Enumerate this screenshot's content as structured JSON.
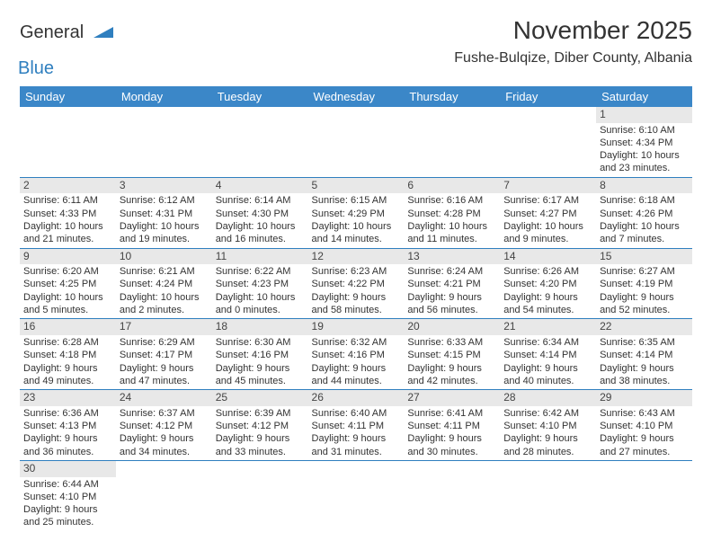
{
  "logo": {
    "text1": "General",
    "text2": "Blue"
  },
  "title": "November 2025",
  "location": "Fushe-Bulqize, Diber County, Albania",
  "header_bg": "#3b87c8",
  "header_fg": "#ffffff",
  "daynum_bg": "#e8e8e8",
  "border_color": "#2f7fbf",
  "days_of_week": [
    "Sunday",
    "Monday",
    "Tuesday",
    "Wednesday",
    "Thursday",
    "Friday",
    "Saturday"
  ],
  "weeks": [
    [
      null,
      null,
      null,
      null,
      null,
      null,
      {
        "n": "1",
        "sunrise": "Sunrise: 6:10 AM",
        "sunset": "Sunset: 4:34 PM",
        "daylight1": "Daylight: 10 hours",
        "daylight2": "and 23 minutes."
      }
    ],
    [
      {
        "n": "2",
        "sunrise": "Sunrise: 6:11 AM",
        "sunset": "Sunset: 4:33 PM",
        "daylight1": "Daylight: 10 hours",
        "daylight2": "and 21 minutes."
      },
      {
        "n": "3",
        "sunrise": "Sunrise: 6:12 AM",
        "sunset": "Sunset: 4:31 PM",
        "daylight1": "Daylight: 10 hours",
        "daylight2": "and 19 minutes."
      },
      {
        "n": "4",
        "sunrise": "Sunrise: 6:14 AM",
        "sunset": "Sunset: 4:30 PM",
        "daylight1": "Daylight: 10 hours",
        "daylight2": "and 16 minutes."
      },
      {
        "n": "5",
        "sunrise": "Sunrise: 6:15 AM",
        "sunset": "Sunset: 4:29 PM",
        "daylight1": "Daylight: 10 hours",
        "daylight2": "and 14 minutes."
      },
      {
        "n": "6",
        "sunrise": "Sunrise: 6:16 AM",
        "sunset": "Sunset: 4:28 PM",
        "daylight1": "Daylight: 10 hours",
        "daylight2": "and 11 minutes."
      },
      {
        "n": "7",
        "sunrise": "Sunrise: 6:17 AM",
        "sunset": "Sunset: 4:27 PM",
        "daylight1": "Daylight: 10 hours",
        "daylight2": "and 9 minutes."
      },
      {
        "n": "8",
        "sunrise": "Sunrise: 6:18 AM",
        "sunset": "Sunset: 4:26 PM",
        "daylight1": "Daylight: 10 hours",
        "daylight2": "and 7 minutes."
      }
    ],
    [
      {
        "n": "9",
        "sunrise": "Sunrise: 6:20 AM",
        "sunset": "Sunset: 4:25 PM",
        "daylight1": "Daylight: 10 hours",
        "daylight2": "and 5 minutes."
      },
      {
        "n": "10",
        "sunrise": "Sunrise: 6:21 AM",
        "sunset": "Sunset: 4:24 PM",
        "daylight1": "Daylight: 10 hours",
        "daylight2": "and 2 minutes."
      },
      {
        "n": "11",
        "sunrise": "Sunrise: 6:22 AM",
        "sunset": "Sunset: 4:23 PM",
        "daylight1": "Daylight: 10 hours",
        "daylight2": "and 0 minutes."
      },
      {
        "n": "12",
        "sunrise": "Sunrise: 6:23 AM",
        "sunset": "Sunset: 4:22 PM",
        "daylight1": "Daylight: 9 hours",
        "daylight2": "and 58 minutes."
      },
      {
        "n": "13",
        "sunrise": "Sunrise: 6:24 AM",
        "sunset": "Sunset: 4:21 PM",
        "daylight1": "Daylight: 9 hours",
        "daylight2": "and 56 minutes."
      },
      {
        "n": "14",
        "sunrise": "Sunrise: 6:26 AM",
        "sunset": "Sunset: 4:20 PM",
        "daylight1": "Daylight: 9 hours",
        "daylight2": "and 54 minutes."
      },
      {
        "n": "15",
        "sunrise": "Sunrise: 6:27 AM",
        "sunset": "Sunset: 4:19 PM",
        "daylight1": "Daylight: 9 hours",
        "daylight2": "and 52 minutes."
      }
    ],
    [
      {
        "n": "16",
        "sunrise": "Sunrise: 6:28 AM",
        "sunset": "Sunset: 4:18 PM",
        "daylight1": "Daylight: 9 hours",
        "daylight2": "and 49 minutes."
      },
      {
        "n": "17",
        "sunrise": "Sunrise: 6:29 AM",
        "sunset": "Sunset: 4:17 PM",
        "daylight1": "Daylight: 9 hours",
        "daylight2": "and 47 minutes."
      },
      {
        "n": "18",
        "sunrise": "Sunrise: 6:30 AM",
        "sunset": "Sunset: 4:16 PM",
        "daylight1": "Daylight: 9 hours",
        "daylight2": "and 45 minutes."
      },
      {
        "n": "19",
        "sunrise": "Sunrise: 6:32 AM",
        "sunset": "Sunset: 4:16 PM",
        "daylight1": "Daylight: 9 hours",
        "daylight2": "and 44 minutes."
      },
      {
        "n": "20",
        "sunrise": "Sunrise: 6:33 AM",
        "sunset": "Sunset: 4:15 PM",
        "daylight1": "Daylight: 9 hours",
        "daylight2": "and 42 minutes."
      },
      {
        "n": "21",
        "sunrise": "Sunrise: 6:34 AM",
        "sunset": "Sunset: 4:14 PM",
        "daylight1": "Daylight: 9 hours",
        "daylight2": "and 40 minutes."
      },
      {
        "n": "22",
        "sunrise": "Sunrise: 6:35 AM",
        "sunset": "Sunset: 4:14 PM",
        "daylight1": "Daylight: 9 hours",
        "daylight2": "and 38 minutes."
      }
    ],
    [
      {
        "n": "23",
        "sunrise": "Sunrise: 6:36 AM",
        "sunset": "Sunset: 4:13 PM",
        "daylight1": "Daylight: 9 hours",
        "daylight2": "and 36 minutes."
      },
      {
        "n": "24",
        "sunrise": "Sunrise: 6:37 AM",
        "sunset": "Sunset: 4:12 PM",
        "daylight1": "Daylight: 9 hours",
        "daylight2": "and 34 minutes."
      },
      {
        "n": "25",
        "sunrise": "Sunrise: 6:39 AM",
        "sunset": "Sunset: 4:12 PM",
        "daylight1": "Daylight: 9 hours",
        "daylight2": "and 33 minutes."
      },
      {
        "n": "26",
        "sunrise": "Sunrise: 6:40 AM",
        "sunset": "Sunset: 4:11 PM",
        "daylight1": "Daylight: 9 hours",
        "daylight2": "and 31 minutes."
      },
      {
        "n": "27",
        "sunrise": "Sunrise: 6:41 AM",
        "sunset": "Sunset: 4:11 PM",
        "daylight1": "Daylight: 9 hours",
        "daylight2": "and 30 minutes."
      },
      {
        "n": "28",
        "sunrise": "Sunrise: 6:42 AM",
        "sunset": "Sunset: 4:10 PM",
        "daylight1": "Daylight: 9 hours",
        "daylight2": "and 28 minutes."
      },
      {
        "n": "29",
        "sunrise": "Sunrise: 6:43 AM",
        "sunset": "Sunset: 4:10 PM",
        "daylight1": "Daylight: 9 hours",
        "daylight2": "and 27 minutes."
      }
    ],
    [
      {
        "n": "30",
        "sunrise": "Sunrise: 6:44 AM",
        "sunset": "Sunset: 4:10 PM",
        "daylight1": "Daylight: 9 hours",
        "daylight2": "and 25 minutes."
      },
      null,
      null,
      null,
      null,
      null,
      null
    ]
  ]
}
